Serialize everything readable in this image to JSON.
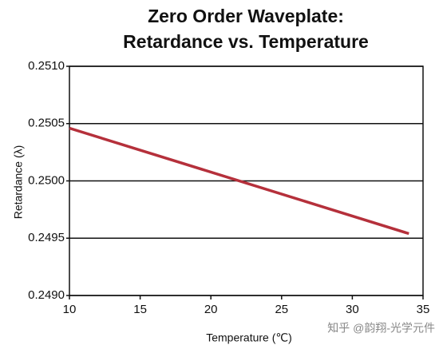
{
  "chart_data": {
    "type": "line",
    "title": [
      "Zero Order Waveplate:",
      "Retardance vs. Temperature"
    ],
    "x_label": "Temperature (℃)",
    "y_label": "Retardance (λ)",
    "x": [
      10,
      34
    ],
    "series": [
      {
        "name": "Retardance",
        "color": "#b5303b",
        "values": [
          0.25046,
          0.24954
        ]
      }
    ],
    "xlim": [
      10,
      35
    ],
    "xticks": [
      10,
      15,
      20,
      25,
      30,
      35
    ],
    "ylim": [
      0.249,
      0.251
    ],
    "yticks": [
      {
        "value": 0.249,
        "label": "0.2490"
      },
      0.2495,
      {
        "value": 0.25,
        "label": "0.2500"
      },
      0.2505,
      {
        "value": 0.251,
        "label": "0.2510"
      }
    ],
    "grid": true,
    "watermark": "知乎 @韵翔-光学元件"
  }
}
